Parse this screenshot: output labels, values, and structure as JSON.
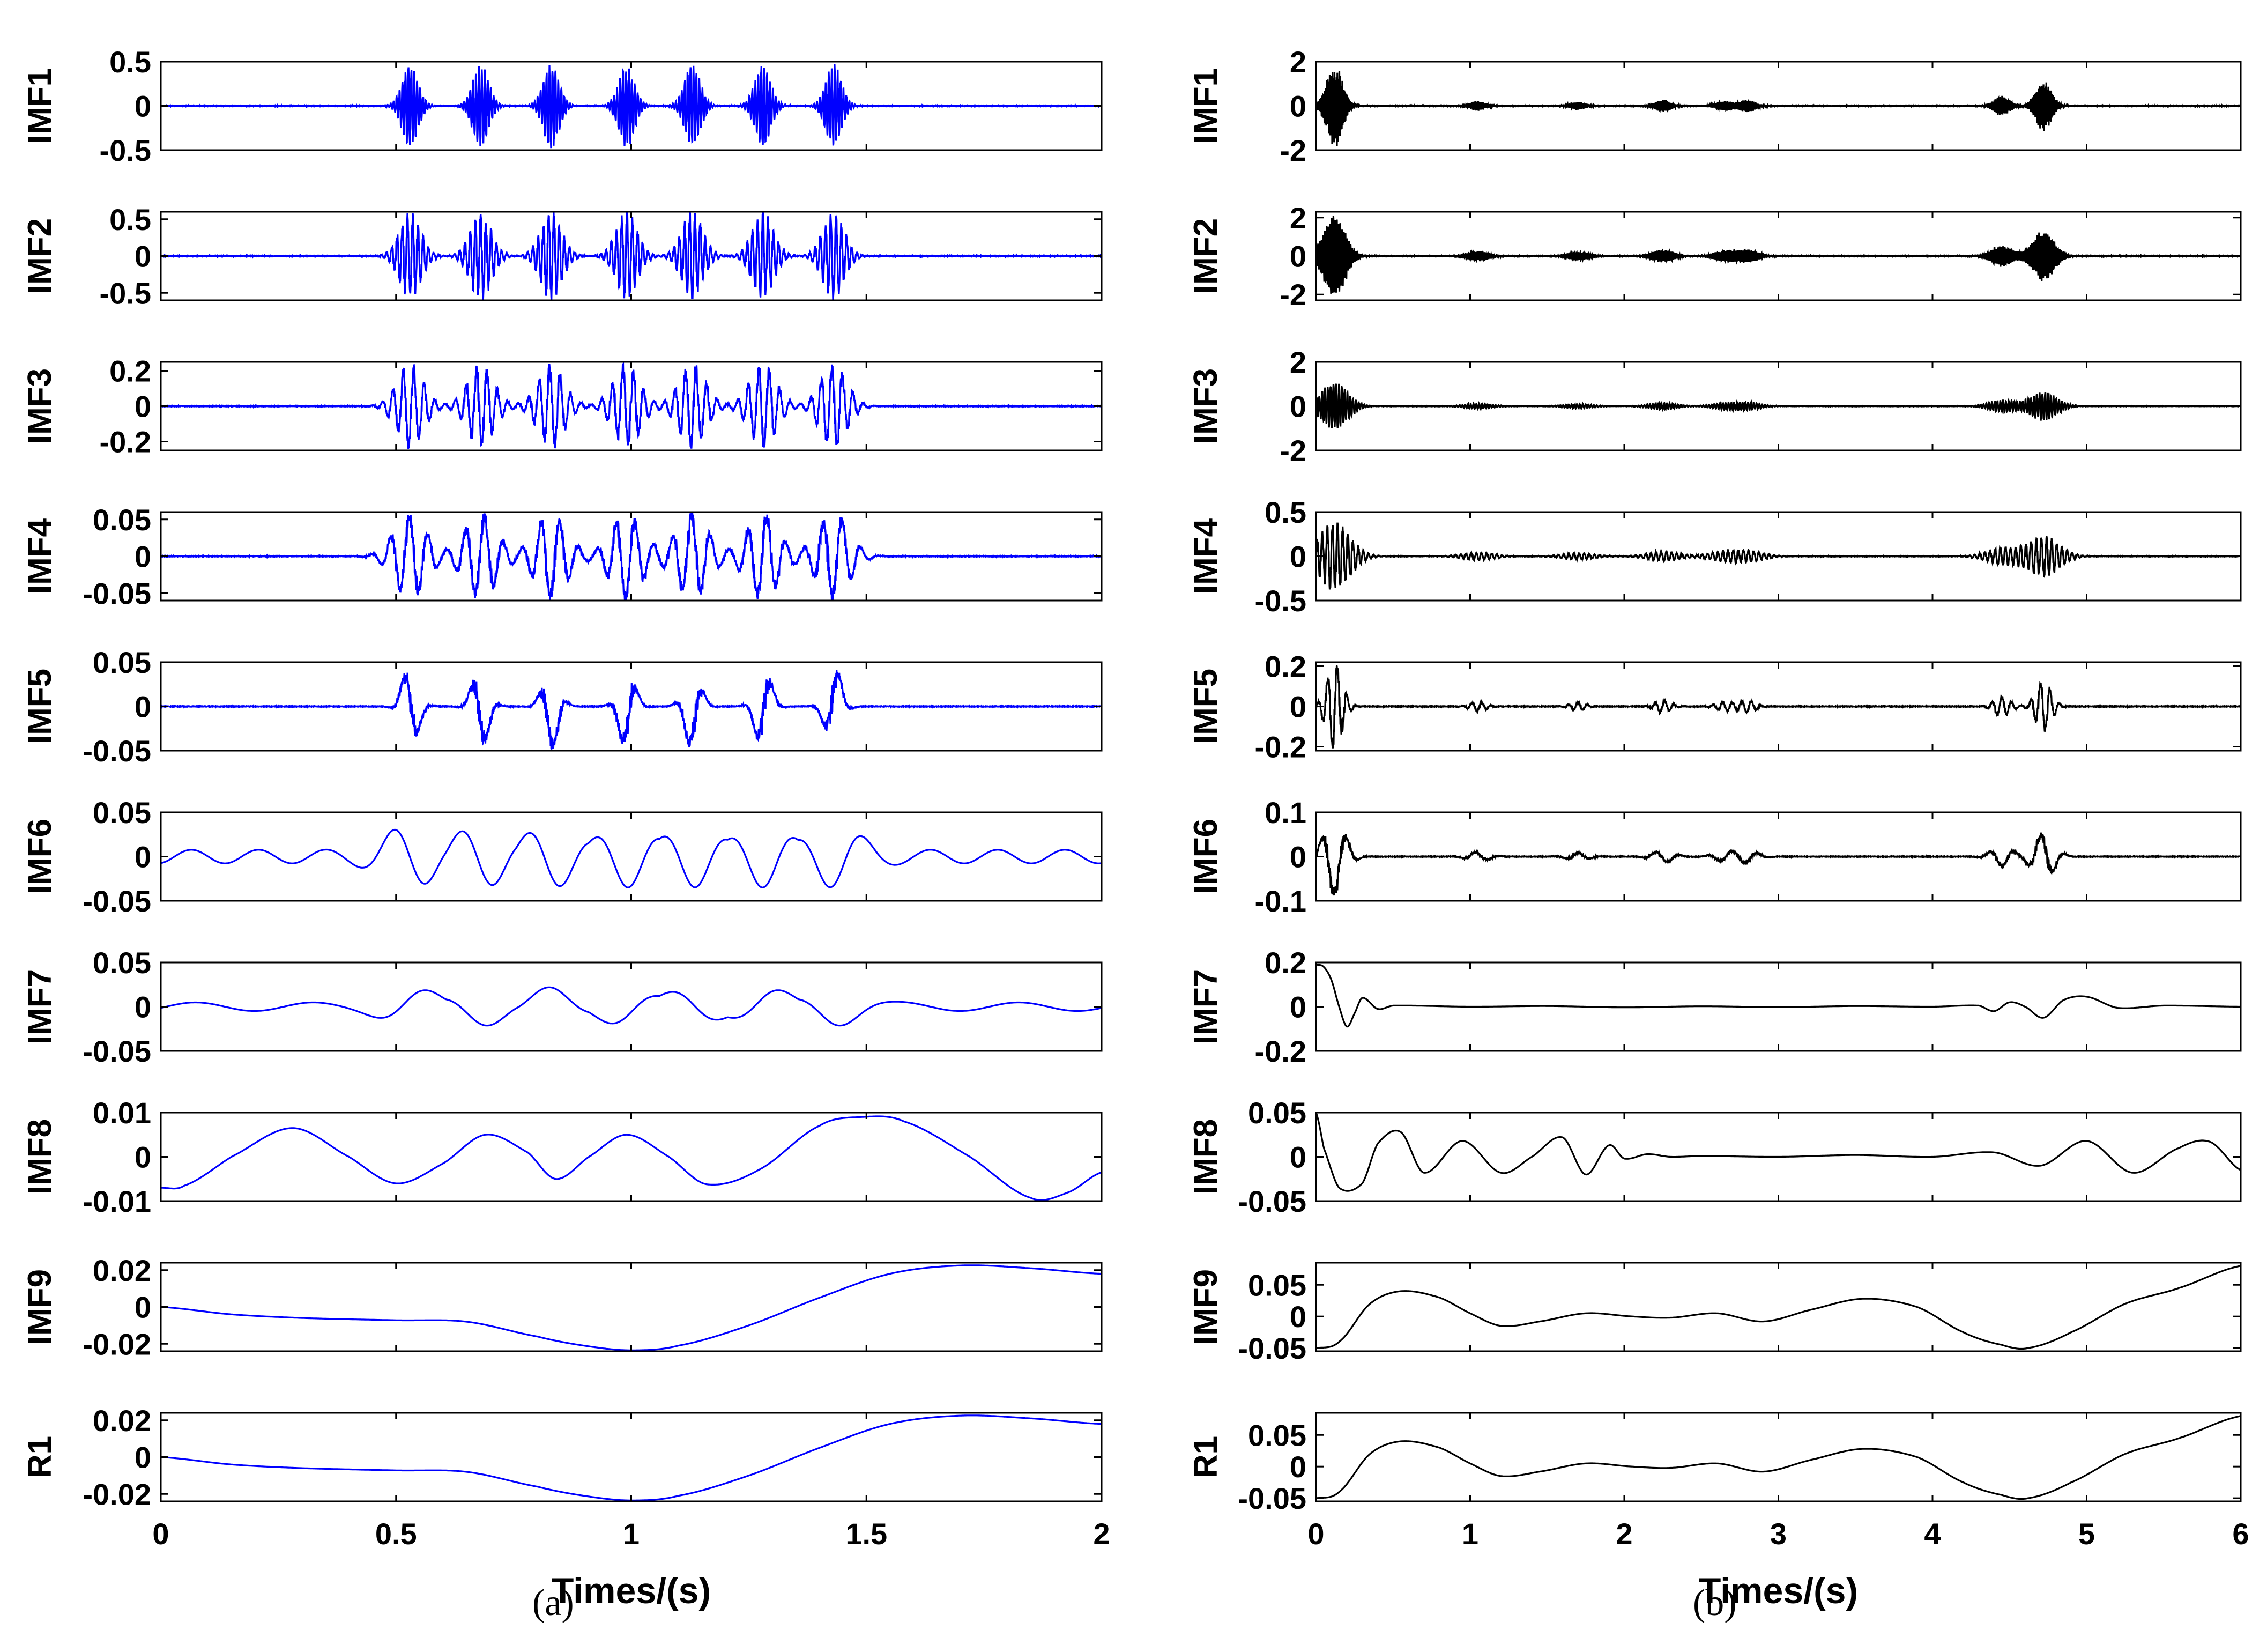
{
  "captions": {
    "a": "(a)",
    "b": "(b)"
  },
  "chart_data": [
    {
      "type": "line",
      "id": "a",
      "color": "#0000ff",
      "xlim": [
        0,
        2
      ],
      "xticks": [
        0,
        0.5,
        1,
        1.5,
        2
      ],
      "xticklabels": [
        "0",
        "0.5",
        "1",
        "1.5",
        "2"
      ],
      "xlabel": "Times/(s)",
      "events": [
        0.53,
        0.68,
        0.83,
        0.99,
        1.13,
        1.28,
        1.43
      ],
      "panels": [
        {
          "label": "IMF1",
          "ylim": [
            -0.5,
            0.5
          ],
          "yticks": [
            0.5,
            0,
            -0.5
          ],
          "yticklabels": [
            "0.5",
            "0",
            "-0.5"
          ],
          "amp": 0.43,
          "kind": "burst",
          "freq": 160
        },
        {
          "label": "IMF2",
          "ylim": [
            -0.6,
            0.6
          ],
          "yticks": [
            0.5,
            0,
            -0.5
          ],
          "yticklabels": [
            "0.5",
            "0",
            "-0.5"
          ],
          "amp": 0.55,
          "kind": "burst",
          "freq": 90
        },
        {
          "label": "IMF3",
          "ylim": [
            -0.25,
            0.25
          ],
          "yticks": [
            0.2,
            0,
            -0.2
          ],
          "yticklabels": [
            "0.2",
            "0",
            "-0.2"
          ],
          "amp": 0.22,
          "kind": "burst",
          "freq": 45
        },
        {
          "label": "IMF4",
          "ylim": [
            -0.06,
            0.06
          ],
          "yticks": [
            0.05,
            0,
            -0.05
          ],
          "yticklabels": [
            "0.05",
            "0",
            "-0.05"
          ],
          "amp": 0.055,
          "kind": "burst",
          "freq": 25
        },
        {
          "label": "IMF5",
          "ylim": [
            -0.05,
            0.05
          ],
          "yticks": [
            0.05,
            0,
            -0.05
          ],
          "yticklabels": [
            "0.05",
            "0",
            "-0.05"
          ],
          "amp": 0.045,
          "kind": "burst",
          "freq": 14
        },
        {
          "label": "IMF6",
          "ylim": [
            -0.05,
            0.05
          ],
          "yticks": [
            0.05,
            0,
            -0.05
          ],
          "yticklabels": [
            "0.05",
            "0",
            "-0.05"
          ],
          "amp": 0.035,
          "kind": "wave",
          "freq": 7
        },
        {
          "label": "IMF7",
          "ylim": [
            -0.05,
            0.05
          ],
          "yticks": [
            0.05,
            0,
            -0.05
          ],
          "yticklabels": [
            "0.05",
            "0",
            "-0.05"
          ],
          "amp": 0.022,
          "kind": "wave",
          "freq": 4
        },
        {
          "label": "IMF8",
          "ylim": [
            -0.01,
            0.01
          ],
          "yticks": [
            0.01,
            0,
            -0.01
          ],
          "yticklabels": [
            "0.01",
            "0",
            "-0.01"
          ],
          "kind": "points",
          "x": [
            0,
            0.05,
            0.15,
            0.28,
            0.4,
            0.5,
            0.6,
            0.69,
            0.78,
            0.84,
            0.91,
            0.99,
            1.08,
            1.16,
            1.27,
            1.4,
            1.49,
            1.58,
            1.72,
            1.85,
            1.93,
            2.0
          ],
          "y": [
            -0.007,
            -0.0065,
            0.0,
            0.0065,
            0.0,
            -0.006,
            -0.0015,
            0.005,
            0.001,
            -0.005,
            0.0,
            0.005,
            0.0,
            -0.0062,
            -0.003,
            0.007,
            0.009,
            0.008,
            0.0,
            -0.0093,
            -0.008,
            -0.0035
          ]
        },
        {
          "label": "IMF9",
          "ylim": [
            -0.024,
            0.024
          ],
          "yticks": [
            0.02,
            0,
            -0.02
          ],
          "yticklabels": [
            "0.02",
            "0",
            "-0.02"
          ],
          "kind": "points",
          "x": [
            0,
            0.15,
            0.3,
            0.5,
            0.65,
            0.8,
            0.9,
            1.0,
            1.1,
            1.25,
            1.4,
            1.55,
            1.7,
            1.85,
            2.0
          ],
          "y": [
            0.0,
            -0.004,
            -0.006,
            -0.0072,
            -0.008,
            -0.016,
            -0.021,
            -0.0235,
            -0.021,
            -0.01,
            0.005,
            0.018,
            0.0225,
            0.021,
            0.018
          ]
        },
        {
          "label": "R1",
          "ylim": [
            -0.024,
            0.024
          ],
          "yticks": [
            0.02,
            0,
            -0.02
          ],
          "yticklabels": [
            "0.02",
            "0",
            "-0.02"
          ],
          "kind": "points",
          "x": [
            0,
            0.15,
            0.3,
            0.5,
            0.65,
            0.8,
            0.9,
            1.0,
            1.1,
            1.25,
            1.4,
            1.55,
            1.7,
            1.85,
            2.0
          ],
          "y": [
            0.0,
            -0.004,
            -0.006,
            -0.0072,
            -0.008,
            -0.016,
            -0.021,
            -0.0235,
            -0.021,
            -0.01,
            0.005,
            0.018,
            0.0225,
            0.021,
            0.018
          ]
        }
      ]
    },
    {
      "type": "line",
      "id": "b",
      "color": "#000000",
      "xlim": [
        0,
        6
      ],
      "xticks": [
        0,
        1,
        2,
        3,
        4,
        5,
        6
      ],
      "xticklabels": [
        "0",
        "1",
        "2",
        "3",
        "4",
        "5",
        "6"
      ],
      "xlabel": "Times/(s)",
      "events": [
        0.12,
        1.05,
        1.7,
        2.25,
        2.65,
        2.8,
        4.45,
        4.72
      ],
      "event_weights": [
        1.0,
        0.12,
        0.1,
        0.15,
        0.12,
        0.15,
        0.25,
        0.6
      ],
      "panels": [
        {
          "label": "IMF1",
          "ylim": [
            -2,
            2
          ],
          "yticks": [
            2,
            0,
            -2
          ],
          "yticklabels": [
            "2",
            "0",
            "-2"
          ],
          "amp": 1.7,
          "kind": "burst",
          "freq": 160
        },
        {
          "label": "IMF2",
          "ylim": [
            -2.3,
            2.3
          ],
          "yticks": [
            2,
            0,
            -2
          ],
          "yticklabels": [
            "2",
            "0",
            "-2"
          ],
          "amp": 2.0,
          "kind": "burst",
          "freq": 90
        },
        {
          "label": "IMF3",
          "ylim": [
            -2,
            2
          ],
          "yticks": [
            2,
            0,
            -2
          ],
          "yticklabels": [
            "2",
            "0",
            "-2"
          ],
          "amp": 1.0,
          "kind": "burst",
          "freq": 55
        },
        {
          "label": "IMF4",
          "ylim": [
            -0.5,
            0.5
          ],
          "yticks": [
            0.5,
            0,
            -0.5
          ],
          "yticklabels": [
            "0.5",
            "0",
            "-0.5"
          ],
          "amp": 0.35,
          "kind": "burst",
          "freq": 30
        },
        {
          "label": "IMF5",
          "ylim": [
            -0.22,
            0.22
          ],
          "yticks": [
            0.2,
            0,
            -0.2
          ],
          "yticklabels": [
            "0.2",
            "0",
            "-0.2"
          ],
          "amp": 0.2,
          "kind": "burst",
          "freq": 16
        },
        {
          "label": "IMF6",
          "ylim": [
            -0.1,
            0.1
          ],
          "yticks": [
            0.1,
            0,
            -0.1
          ],
          "yticklabels": [
            "0.1",
            "0",
            "-0.1"
          ],
          "amp": 0.085,
          "kind": "burst",
          "freq": 6
        },
        {
          "label": "IMF7",
          "ylim": [
            -0.2,
            0.2
          ],
          "yticks": [
            0.2,
            0,
            -0.2
          ],
          "yticklabels": [
            "0.2",
            "0",
            "-0.2"
          ],
          "kind": "points",
          "x": [
            0,
            0.05,
            0.1,
            0.15,
            0.2,
            0.25,
            0.3,
            0.4,
            0.5,
            1.0,
            1.5,
            2.0,
            2.5,
            3.0,
            3.5,
            4.0,
            4.3,
            4.4,
            4.5,
            4.6,
            4.72,
            4.85,
            5.0,
            5.2,
            5.5,
            6.0
          ],
          "y": [
            0.19,
            0.18,
            0.12,
            0.0,
            -0.09,
            -0.03,
            0.04,
            -0.01,
            0.005,
            0.0,
            0.003,
            -0.003,
            0.002,
            -0.002,
            0.003,
            0.0,
            0.005,
            -0.02,
            0.02,
            0.0,
            -0.05,
            0.03,
            0.045,
            -0.005,
            0.005,
            0.0
          ]
        },
        {
          "label": "IMF8",
          "ylim": [
            -0.05,
            0.05
          ],
          "yticks": [
            0.05,
            0,
            -0.05
          ],
          "yticklabels": [
            "0.05",
            "0",
            "-0.05"
          ],
          "kind": "points",
          "x": [
            0,
            0.05,
            0.15,
            0.3,
            0.4,
            0.55,
            0.7,
            0.95,
            1.2,
            1.4,
            1.6,
            1.75,
            1.9,
            2.0,
            2.15,
            2.3,
            2.5,
            3.0,
            3.5,
            4.0,
            4.4,
            4.7,
            5.0,
            5.3,
            5.6,
            5.8,
            6.0
          ],
          "y": [
            0.05,
            0.01,
            -0.035,
            -0.03,
            0.015,
            0.028,
            -0.018,
            0.018,
            -0.018,
            0.0,
            0.022,
            -0.02,
            0.013,
            -0.002,
            0.003,
            0.0,
            0.001,
            0.0,
            0.002,
            0.0,
            0.005,
            -0.01,
            0.018,
            -0.018,
            0.01,
            0.017,
            -0.015
          ]
        },
        {
          "label": "IMF9",
          "ylim": [
            -0.055,
            0.085
          ],
          "yticks": [
            0.05,
            0,
            -0.05
          ],
          "yticklabels": [
            "0.05",
            "0",
            "-0.05"
          ],
          "kind": "points",
          "x": [
            0,
            0.15,
            0.35,
            0.55,
            0.8,
            1.0,
            1.2,
            1.45,
            1.75,
            2.05,
            2.3,
            2.6,
            2.9,
            3.2,
            3.55,
            3.9,
            4.2,
            4.45,
            4.62,
            4.9,
            5.25,
            5.6,
            6.0
          ],
          "y": [
            -0.05,
            -0.04,
            0.02,
            0.04,
            0.03,
            0.005,
            -0.015,
            -0.008,
            0.005,
            0.0,
            -0.002,
            0.005,
            -0.008,
            0.01,
            0.028,
            0.015,
            -0.025,
            -0.045,
            -0.05,
            -0.025,
            0.02,
            0.045,
            0.08
          ]
        },
        {
          "label": "R1",
          "ylim": [
            -0.055,
            0.085
          ],
          "yticks": [
            0.05,
            0,
            -0.05
          ],
          "yticklabels": [
            "0.05",
            "0",
            "-0.05"
          ],
          "kind": "points",
          "x": [
            0,
            0.15,
            0.35,
            0.55,
            0.8,
            1.0,
            1.2,
            1.45,
            1.75,
            2.05,
            2.3,
            2.6,
            2.9,
            3.2,
            3.55,
            3.9,
            4.2,
            4.45,
            4.62,
            4.9,
            5.25,
            5.6,
            6.0
          ],
          "y": [
            -0.05,
            -0.04,
            0.02,
            0.04,
            0.03,
            0.005,
            -0.015,
            -0.008,
            0.005,
            0.0,
            -0.002,
            0.005,
            -0.008,
            0.01,
            0.028,
            0.015,
            -0.025,
            -0.045,
            -0.05,
            -0.025,
            0.02,
            0.045,
            0.08
          ]
        }
      ]
    }
  ]
}
